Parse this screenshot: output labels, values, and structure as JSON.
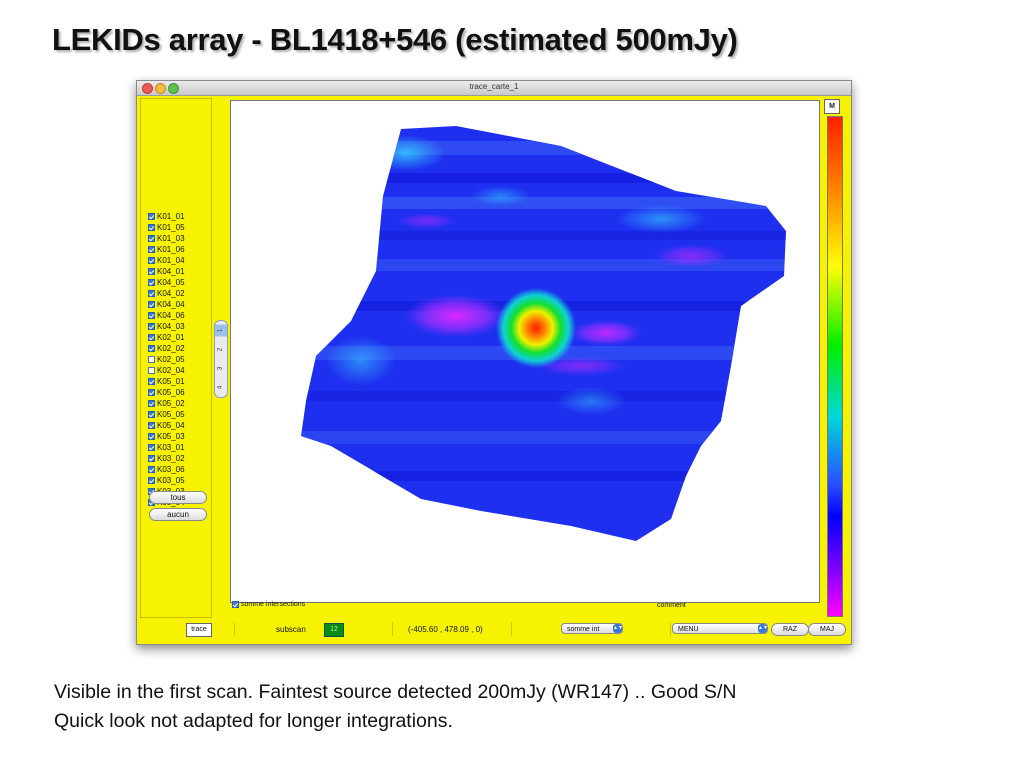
{
  "slide": {
    "title": "LEKIDs array - BL1418+546 (estimated 500mJy)",
    "caption_lines": [
      "Visible in the first scan. Faintest source detected 200mJy (WR147) .. Good S/N",
      "Quick look not adapted for longer integrations."
    ]
  },
  "window": {
    "title": "trace_carte_1",
    "background_color": "#f7f300"
  },
  "detectors": [
    {
      "label": "K01_01",
      "checked": true
    },
    {
      "label": "K01_05",
      "checked": true
    },
    {
      "label": "K01_03",
      "checked": true
    },
    {
      "label": "K01_06",
      "checked": true
    },
    {
      "label": "K01_04",
      "checked": true
    },
    {
      "label": "K04_01",
      "checked": true
    },
    {
      "label": "K04_05",
      "checked": true
    },
    {
      "label": "K04_02",
      "checked": true
    },
    {
      "label": "K04_04",
      "checked": true
    },
    {
      "label": "K04_06",
      "checked": true
    },
    {
      "label": "K04_03",
      "checked": true
    },
    {
      "label": "K02_01",
      "checked": true
    },
    {
      "label": "K02_02",
      "checked": true
    },
    {
      "label": "K02_05",
      "checked": false
    },
    {
      "label": "K02_04",
      "checked": false
    },
    {
      "label": "K05_01",
      "checked": true
    },
    {
      "label": "K05_06",
      "checked": true
    },
    {
      "label": "K05_02",
      "checked": true
    },
    {
      "label": "K05_05",
      "checked": true
    },
    {
      "label": "K05_04",
      "checked": true
    },
    {
      "label": "K05_03",
      "checked": true
    },
    {
      "label": "K03_01",
      "checked": true
    },
    {
      "label": "K03_02",
      "checked": true
    },
    {
      "label": "K03_06",
      "checked": true
    },
    {
      "label": "K03_05",
      "checked": true
    },
    {
      "label": "K03_03",
      "checked": true
    },
    {
      "label": "K03_04",
      "checked": true
    }
  ],
  "buttons": {
    "all": "tous",
    "none": "aucun",
    "trace": "trace",
    "raz": "RAZ",
    "maj": "MAJ",
    "m": "M"
  },
  "stepper": {
    "items": [
      "1",
      "2",
      "3",
      "4"
    ],
    "selected": "1"
  },
  "plot": {
    "somme_intersections_label": "somme intersections",
    "somme_intersections_checked": true,
    "comment_label": "comment",
    "colormap": [
      "#ff2000",
      "#ff8000",
      "#ffff00",
      "#00ee00",
      "#00d8d8",
      "#2a4aff",
      "#0000ff",
      "#9000ff",
      "#ff00ff"
    ]
  },
  "toolbar": {
    "subscan_label": "subscan",
    "subscan_value": "12",
    "coords": "(-405.60 , 478.09 , 0)",
    "mode_select": "somme int",
    "menu_select": "MENU"
  }
}
